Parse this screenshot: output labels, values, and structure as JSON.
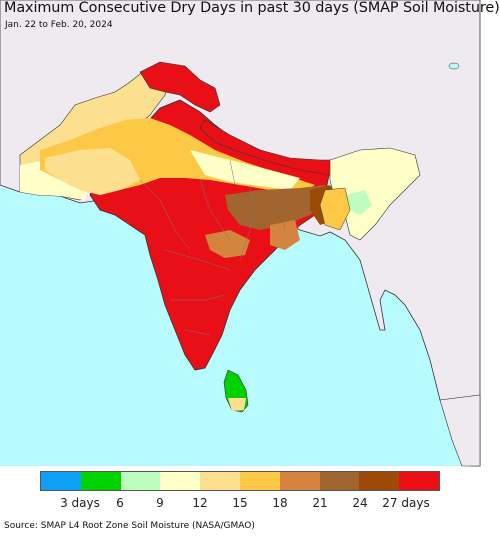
{
  "map": {
    "title": "Maximum Consecutive Dry Days in past 30 days (SMAP Soil Moisture)",
    "date_range": "Jan. 22 to Feb. 20, 2024",
    "source": "Source: SMAP L4 Root Zone Soil Moisture (NASA/GMAO)",
    "colors": {
      "ocean": "#b8fbff",
      "land_outside": "#eeeaf0",
      "border": "#333333",
      "state_border": "#777777"
    }
  },
  "legend": {
    "colors": [
      "#0da0f5",
      "#00d200",
      "#bffdbf",
      "#ffffc8",
      "#fde08f",
      "#fdc845",
      "#d5843f",
      "#a3652f",
      "#9c4a05",
      "#e81016"
    ],
    "tick_labels": [
      "3 days",
      "6",
      "9",
      "12",
      "15",
      "18",
      "21",
      "24",
      "27 days"
    ]
  }
}
